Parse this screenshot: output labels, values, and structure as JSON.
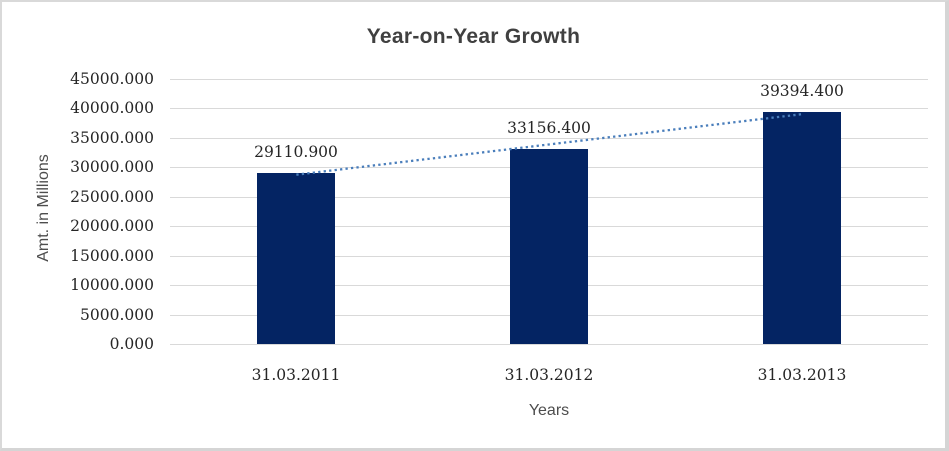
{
  "chart_data": {
    "type": "bar",
    "title": "Year-on-Year Growth",
    "xlabel": "Years",
    "ylabel": "Amt. in Millions",
    "categories": [
      "31.03.2011",
      "31.03.2012",
      "31.03.2013"
    ],
    "values": [
      29110.9,
      33156.4,
      39394.4
    ],
    "data_labels": [
      "29110.900",
      "33156.400",
      "39394.400"
    ],
    "y_ticks": [
      0,
      5000,
      10000,
      15000,
      20000,
      25000,
      30000,
      35000,
      40000,
      45000
    ],
    "y_tick_labels": [
      "0.000",
      "5000.000",
      "10000.000",
      "15000.000",
      "20000.000",
      "25000.000",
      "30000.000",
      "35000.000",
      "40000.000",
      "45000.000"
    ],
    "ylim": [
      0,
      45000
    ],
    "grid": "horizontal",
    "legend": false,
    "trendline": {
      "type": "linear",
      "style": "dotted",
      "start_value": 28745.5,
      "end_value": 39029.0
    },
    "colors": {
      "bar": "#042463",
      "trendline": "#4a7ebb",
      "gridline": "#d9d9d9",
      "title_text": "#404040",
      "tick_text": "#262626",
      "frame_border": "#d7d7d7"
    }
  }
}
